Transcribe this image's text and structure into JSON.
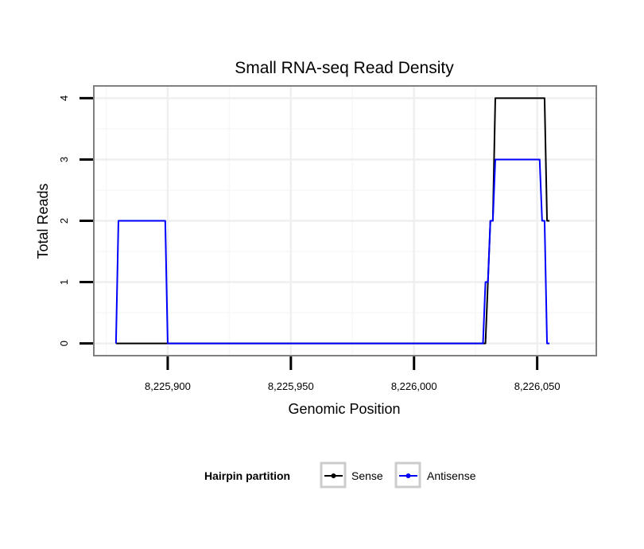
{
  "chart_data": {
    "type": "line",
    "title": "Small RNA-seq Read Density",
    "xlabel": "Genomic Position",
    "ylabel": "Total Reads",
    "xlim": [
      8225870,
      8226074
    ],
    "ylim": [
      -0.2,
      4.2
    ],
    "xticks": [
      8225900,
      8225950,
      8226000,
      8226050
    ],
    "xtick_labels": [
      "8,225,900",
      "8,225,950",
      "8,226,000",
      "8,226,050"
    ],
    "yticks": [
      0,
      1,
      2,
      3,
      4
    ],
    "ytick_labels": [
      "0",
      "1",
      "2",
      "3",
      "4"
    ],
    "grid": true,
    "legend_title": "Hairpin partition",
    "legend_position": "bottom",
    "series": [
      {
        "name": "Sense",
        "color": "#000000",
        "x": [
          8225879,
          8226029,
          8226030,
          8226031,
          8226032,
          8226033,
          8226053,
          8226054,
          8226055
        ],
        "y": [
          0,
          0,
          1,
          2,
          2,
          4,
          4,
          2,
          2
        ]
      },
      {
        "name": "Antisense",
        "color": "#0000ff",
        "x": [
          8225879,
          8225880,
          8225899,
          8225900,
          8226028,
          8226029,
          8226030,
          8226031,
          8226032,
          8226033,
          8226051,
          8226052,
          8226053,
          8226054,
          8226055
        ],
        "y": [
          0,
          2,
          2,
          0,
          0,
          1,
          1,
          2,
          2,
          3,
          3,
          2,
          2,
          0,
          0
        ]
      }
    ]
  }
}
